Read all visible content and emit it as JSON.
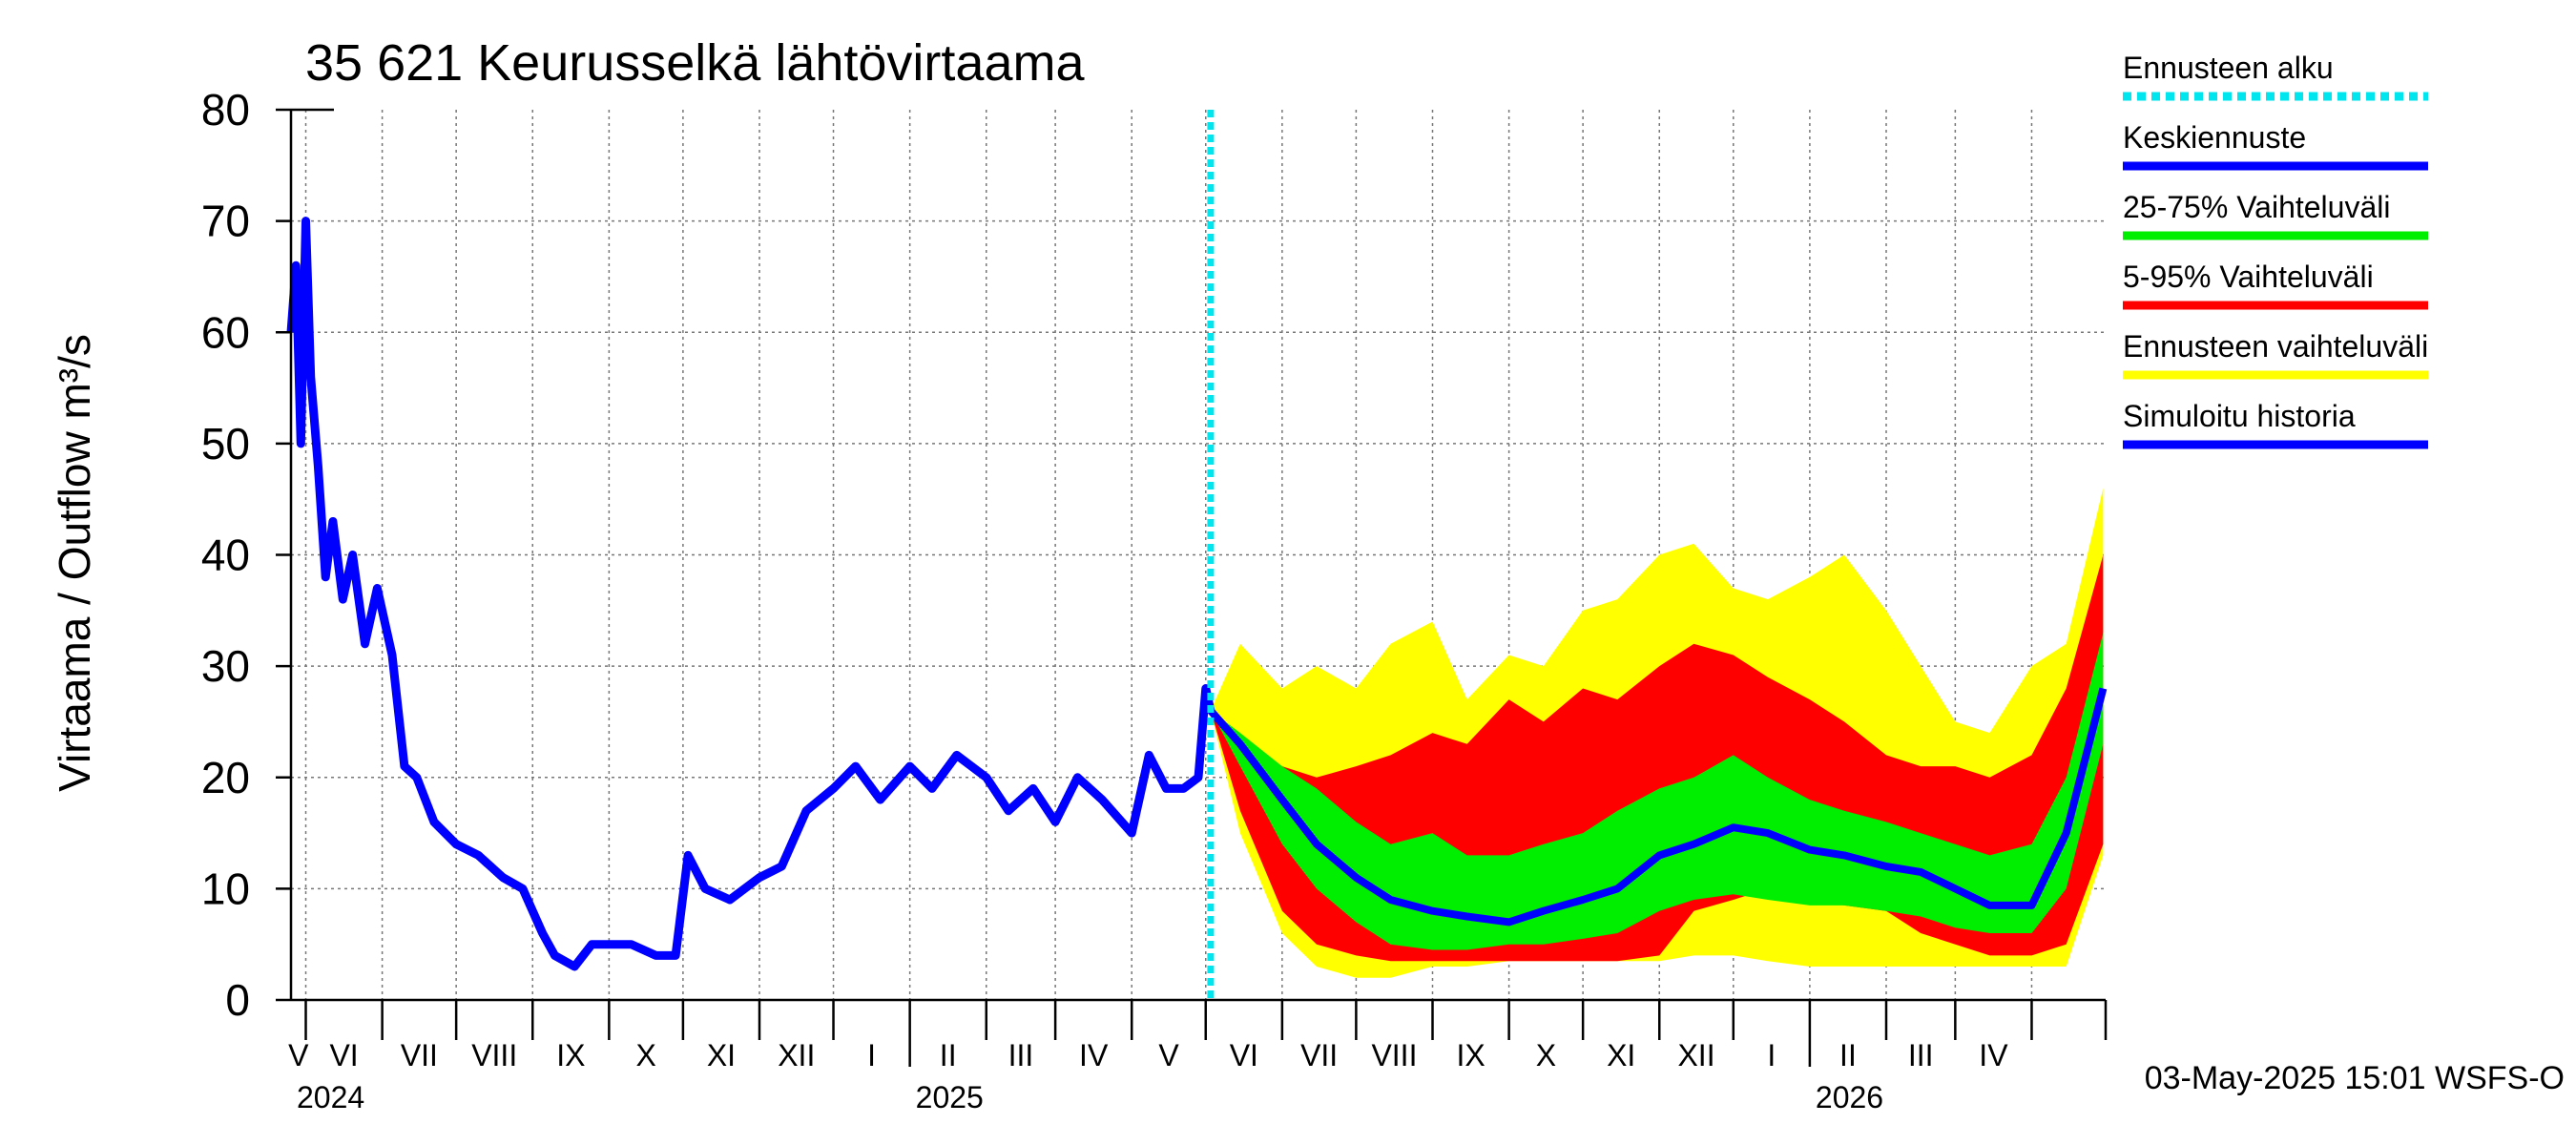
{
  "chart_data": {
    "type": "area",
    "title": "35 621 Keurusselkä lähtövirtaama",
    "ylabel": "Virtaama / Outflow    m³/s",
    "ylim": [
      0,
      80
    ],
    "yticks": [
      "0",
      "10",
      "20",
      "30",
      "40",
      "50",
      "60",
      "70",
      "80"
    ],
    "x_range": [
      "2024-04-25",
      "2026-05-01"
    ],
    "forecast_start": "2025-05-03",
    "month_labels": [
      "V",
      "VI",
      "VII",
      "VIII",
      "IX",
      "X",
      "XI",
      "XII",
      "I",
      "II",
      "III",
      "IV",
      "V",
      "VI",
      "VII",
      "VIII",
      "IX",
      "X",
      "XI",
      "XII",
      "I",
      "II",
      "III",
      "IV"
    ],
    "year_labels": [
      "2024",
      "2025",
      "2026"
    ],
    "footer": "03-May-2025 15:01 WSFS-O",
    "colors": {
      "forecast_start": "#00e5ee",
      "mean_forecast": "#0000ff",
      "range_25_75": "#00ee00",
      "range_5_95": "#ff0000",
      "range_full": "#ffff00",
      "history": "#0000ff"
    },
    "legend": [
      {
        "label": "Ennusteen alku",
        "color": "#00e5ee",
        "style": "dotted"
      },
      {
        "label": "Keskiennuste",
        "color": "#0000ff",
        "style": "solid"
      },
      {
        "label": "25-75% Vaihteluväli",
        "color": "#00ee00",
        "style": "solid"
      },
      {
        "label": "5-95% Vaihteluväli",
        "color": "#ff0000",
        "style": "solid"
      },
      {
        "label": "Ennusteen vaihteluväli",
        "color": "#ffff00",
        "style": "solid"
      },
      {
        "label": "Simuloitu historia",
        "color": "#0000ff",
        "style": "solid"
      }
    ],
    "series": [
      {
        "name": "Simuloitu historia",
        "x": [
          "2024-04-25",
          "2024-04-27",
          "2024-04-29",
          "2024-05-01",
          "2024-05-03",
          "2024-05-06",
          "2024-05-09",
          "2024-05-12",
          "2024-05-16",
          "2024-05-20",
          "2024-05-25",
          "2024-05-30",
          "2024-06-05",
          "2024-06-10",
          "2024-06-15",
          "2024-06-22",
          "2024-07-01",
          "2024-07-10",
          "2024-07-20",
          "2024-07-28",
          "2024-08-05",
          "2024-08-10",
          "2024-08-18",
          "2024-08-25",
          "2024-09-01",
          "2024-09-10",
          "2024-09-20",
          "2024-09-28",
          "2024-10-03",
          "2024-10-10",
          "2024-10-20",
          "2024-11-01",
          "2024-11-10",
          "2024-11-20",
          "2024-12-01",
          "2024-12-10",
          "2024-12-20",
          "2025-01-01",
          "2025-01-10",
          "2025-01-20",
          "2025-02-01",
          "2025-02-10",
          "2025-02-20",
          "2025-03-01",
          "2025-03-10",
          "2025-03-20",
          "2025-04-01",
          "2025-04-08",
          "2025-04-15",
          "2025-04-22",
          "2025-04-28",
          "2025-05-01",
          "2025-05-03"
        ],
        "values": [
          60,
          66,
          50,
          70,
          56,
          48,
          38,
          43,
          36,
          40,
          32,
          37,
          31,
          21,
          20,
          16,
          14,
          13,
          11,
          10,
          6,
          4,
          3,
          5,
          5,
          5,
          4,
          4,
          13,
          10,
          9,
          11,
          12,
          17,
          19,
          21,
          18,
          21,
          19,
          22,
          20,
          17,
          19,
          16,
          20,
          18,
          15,
          22,
          19,
          19,
          20,
          28,
          26
        ]
      },
      {
        "name": "Keskiennuste",
        "x": [
          "2025-05-03",
          "2025-05-15",
          "2025-06-01",
          "2025-06-15",
          "2025-07-01",
          "2025-07-15",
          "2025-08-01",
          "2025-08-15",
          "2025-09-01",
          "2025-09-15",
          "2025-10-01",
          "2025-10-15",
          "2025-11-01",
          "2025-11-15",
          "2025-12-01",
          "2025-12-15",
          "2026-01-01",
          "2026-01-15",
          "2026-02-01",
          "2026-02-15",
          "2026-03-01",
          "2026-03-15",
          "2026-04-01",
          "2026-04-15",
          "2026-04-30"
        ],
        "values": [
          26,
          23,
          18,
          14,
          11,
          9,
          8,
          7.5,
          7,
          8,
          9,
          10,
          13,
          14,
          15.5,
          15,
          13.5,
          13,
          12,
          11.5,
          10,
          8.5,
          8.5,
          15,
          28
        ]
      },
      {
        "name": "25-75% Vaihteluväli",
        "x": [
          "2025-05-03",
          "2025-05-15",
          "2025-06-01",
          "2025-06-15",
          "2025-07-01",
          "2025-07-15",
          "2025-08-01",
          "2025-08-15",
          "2025-09-01",
          "2025-09-15",
          "2025-10-01",
          "2025-10-15",
          "2025-11-01",
          "2025-11-15",
          "2025-12-01",
          "2025-12-15",
          "2026-01-01",
          "2026-01-15",
          "2026-02-01",
          "2026-02-15",
          "2026-03-01",
          "2026-03-15",
          "2026-04-01",
          "2026-04-15",
          "2026-04-30"
        ],
        "lower": [
          26,
          21,
          14,
          10,
          7,
          5,
          4.5,
          4.5,
          5,
          5,
          5.5,
          6,
          8,
          9,
          9.5,
          9,
          8.5,
          8.5,
          8,
          7.5,
          6.5,
          6,
          6,
          10,
          23
        ],
        "upper": [
          26,
          24,
          21,
          19,
          16,
          14,
          15,
          13,
          13,
          14,
          15,
          17,
          19,
          20,
          22,
          20,
          18,
          17,
          16,
          15,
          14,
          13,
          14,
          20,
          33
        ]
      },
      {
        "name": "5-95% Vaihteluväli",
        "x": [
          "2025-05-03",
          "2025-05-15",
          "2025-06-01",
          "2025-06-15",
          "2025-07-01",
          "2025-07-15",
          "2025-08-01",
          "2025-08-15",
          "2025-09-01",
          "2025-09-15",
          "2025-10-01",
          "2025-10-15",
          "2025-11-01",
          "2025-11-15",
          "2025-12-01",
          "2025-12-15",
          "2026-01-01",
          "2026-01-15",
          "2026-02-01",
          "2026-02-15",
          "2026-03-01",
          "2026-03-15",
          "2026-04-01",
          "2026-04-15",
          "2026-04-30"
        ],
        "lower": [
          26,
          17,
          8,
          5,
          4,
          3.5,
          3.5,
          3.5,
          3.5,
          3.5,
          3.5,
          3.5,
          4,
          8,
          9,
          10,
          9,
          8.5,
          8,
          6,
          5,
          4,
          4,
          5,
          14
        ],
        "upper": [
          26,
          23,
          21,
          20,
          21,
          22,
          24,
          23,
          27,
          25,
          28,
          27,
          30,
          32,
          31,
          29,
          27,
          25,
          22,
          21,
          21,
          20,
          22,
          28,
          40
        ]
      },
      {
        "name": "Ennusteen vaihteluväli",
        "x": [
          "2025-05-03",
          "2025-05-15",
          "2025-06-01",
          "2025-06-15",
          "2025-07-01",
          "2025-07-15",
          "2025-08-01",
          "2025-08-15",
          "2025-09-01",
          "2025-09-15",
          "2025-10-01",
          "2025-10-15",
          "2025-11-01",
          "2025-11-15",
          "2025-12-01",
          "2025-12-15",
          "2026-01-01",
          "2026-01-15",
          "2026-02-01",
          "2026-02-15",
          "2026-03-01",
          "2026-03-15",
          "2026-04-01",
          "2026-04-15",
          "2026-04-30"
        ],
        "lower": [
          26,
          15,
          6,
          3,
          2,
          2,
          3,
          3,
          3.5,
          3.5,
          3.5,
          3.5,
          3.5,
          4,
          4,
          3.5,
          3,
          3,
          3,
          3,
          3,
          3,
          3,
          3,
          13
        ],
        "upper": [
          26,
          32,
          28,
          30,
          28,
          32,
          34,
          27,
          31,
          30,
          35,
          36,
          40,
          41,
          37,
          36,
          38,
          40,
          35,
          30,
          25,
          24,
          30,
          32,
          46
        ]
      }
    ]
  }
}
